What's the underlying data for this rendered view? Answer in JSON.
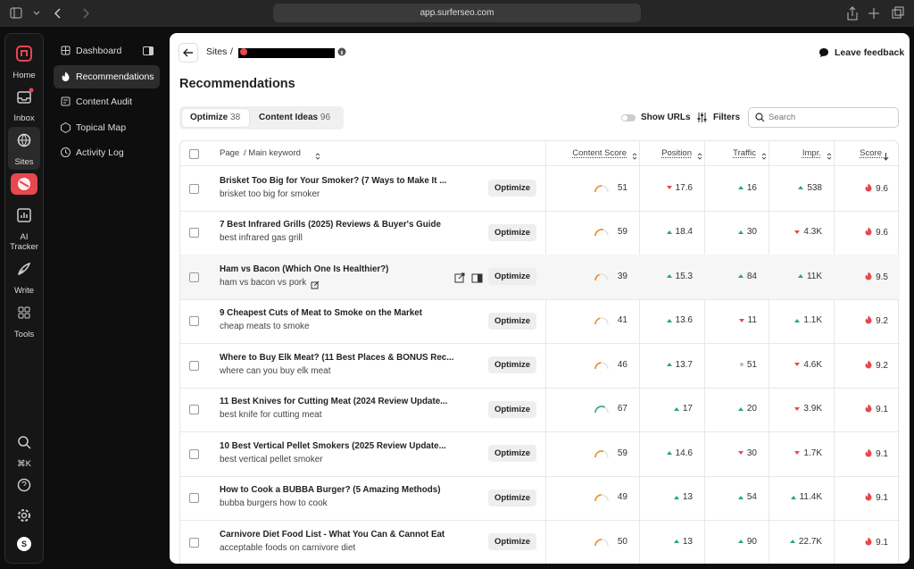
{
  "browser": {
    "url": "app.surferseo.com"
  },
  "rail": {
    "items": [
      "Home",
      "Inbox",
      "Sites",
      "AI Tracker",
      "Write",
      "Tools"
    ],
    "shortcut": "⌘K",
    "avatar": "S"
  },
  "sidebar": {
    "items": [
      "Dashboard",
      "Recommendations",
      "Content Audit",
      "Topical Map",
      "Activity Log"
    ],
    "active": 1
  },
  "header": {
    "breadcrumb": "Sites",
    "separator": "/",
    "feedback": "Leave feedback",
    "title": "Recommendations"
  },
  "tabs": [
    {
      "label": "Optimize",
      "count": 38
    },
    {
      "label": "Content Ideas",
      "count": 96
    }
  ],
  "toolbar": {
    "toggle": "Show URLs",
    "filters": "Filters",
    "search_placeholder": "Search"
  },
  "table": {
    "columns": [
      "Page",
      "/ Main keyword",
      "Content Score",
      "Position",
      "Traffic",
      "Impr.",
      "Score"
    ],
    "action": "Optimize",
    "rows": [
      {
        "title": "Brisket Too Big for Your Smoker? (7 Ways to Make It ...",
        "keyword": "brisket too big for smoker",
        "content_score": 51,
        "gauge_color": "#f08a24",
        "position": "17.6",
        "position_trend": "down",
        "traffic": "16",
        "traffic_trend": "up",
        "impr": "538",
        "impr_trend": "up",
        "score": "9.6"
      },
      {
        "title": "7 Best Infrared Grills (2025) Reviews & Buyer's Guide",
        "keyword": "best infrared gas grill",
        "content_score": 59,
        "gauge_color": "#f08a24",
        "position": "18.4",
        "position_trend": "up",
        "traffic": "30",
        "traffic_trend": "up",
        "impr": "4.3K",
        "impr_trend": "down",
        "score": "9.6"
      },
      {
        "title": "Ham vs Bacon (Which One Is Healthier?)",
        "keyword": "ham vs bacon vs pork",
        "content_score": 39,
        "gauge_color": "#f08a24",
        "position": "15.3",
        "position_trend": "up",
        "traffic": "84",
        "traffic_trend": "up",
        "impr": "11K",
        "impr_trend": "up",
        "score": "9.5"
      },
      {
        "title": "9 Cheapest Cuts of Meat to Smoke on the Market",
        "keyword": "cheap meats to smoke",
        "content_score": 41,
        "gauge_color": "#f08a24",
        "position": "13.6",
        "position_trend": "up",
        "traffic": "11",
        "traffic_trend": "down",
        "impr": "1.1K",
        "impr_trend": "up",
        "score": "9.2"
      },
      {
        "title": "Where to Buy Elk Meat? (11 Best Places & BONUS Rec...",
        "keyword": "where can you buy elk meat",
        "content_score": 46,
        "gauge_color": "#f08a24",
        "position": "13.7",
        "position_trend": "up",
        "traffic": "51",
        "traffic_trend": "flat",
        "impr": "4.6K",
        "impr_trend": "down",
        "score": "9.2"
      },
      {
        "title": "11 Best Knives for Cutting Meat (2024 Review Update...",
        "keyword": "best knife for cutting meat",
        "content_score": 67,
        "gauge_color": "#2eaa6e",
        "position": "17",
        "position_trend": "up",
        "traffic": "20",
        "traffic_trend": "up",
        "impr": "3.9K",
        "impr_trend": "down",
        "score": "9.1"
      },
      {
        "title": "10 Best Vertical Pellet Smokers (2025 Review Update...",
        "keyword": "best vertical pellet smoker",
        "content_score": 59,
        "gauge_color": "#f08a24",
        "position": "14.6",
        "position_trend": "up",
        "traffic": "30",
        "traffic_trend": "down",
        "impr": "1.7K",
        "impr_trend": "down",
        "score": "9.1"
      },
      {
        "title": "How to Cook a BUBBA Burger? (5 Amazing Methods)",
        "keyword": "bubba burgers how to cook",
        "content_score": 49,
        "gauge_color": "#f08a24",
        "position": "13",
        "position_trend": "up",
        "traffic": "54",
        "traffic_trend": "up",
        "impr": "11.4K",
        "impr_trend": "up",
        "score": "9.1"
      },
      {
        "title": "Carnivore Diet Food List - What You Can & Cannot Eat",
        "keyword": "acceptable foods on carnivore diet",
        "content_score": 50,
        "gauge_color": "#f08a24",
        "position": "13",
        "position_trend": "up",
        "traffic": "90",
        "traffic_trend": "up",
        "impr": "22.7K",
        "impr_trend": "up",
        "score": "9.1"
      }
    ]
  }
}
